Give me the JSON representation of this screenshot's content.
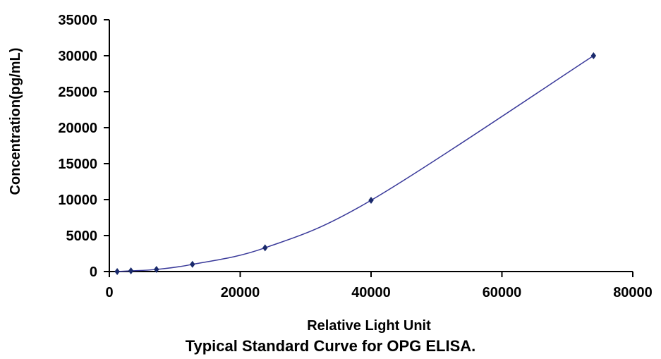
{
  "caption": "Typical Standard Curve for OPG ELISA.",
  "chart_data": {
    "type": "scatter",
    "title": "",
    "xlabel": "Relative Light Unit",
    "ylabel": "Concentration(pg/mL)",
    "xlim": [
      0,
      80000
    ],
    "ylim": [
      0,
      35000
    ],
    "xticks": [
      "0",
      "20000",
      "40000",
      "60000",
      "80000"
    ],
    "yticks": [
      "0",
      "5000",
      "10000",
      "15000",
      "20000",
      "25000",
      "30000",
      "35000"
    ],
    "grid": false,
    "legend": "none",
    "series": [
      {
        "points": [
          {
            "x": 1200,
            "y": 0
          },
          {
            "x": 3300,
            "y": 100
          },
          {
            "x": 7200,
            "y": 300
          },
          {
            "x": 12700,
            "y": 1000
          },
          {
            "x": 23800,
            "y": 3300
          },
          {
            "x": 40000,
            "y": 9900
          },
          {
            "x": 74000,
            "y": 30000
          }
        ],
        "curve": "smooth",
        "color": "#3a3a9a",
        "marker": "diamond"
      }
    ]
  }
}
